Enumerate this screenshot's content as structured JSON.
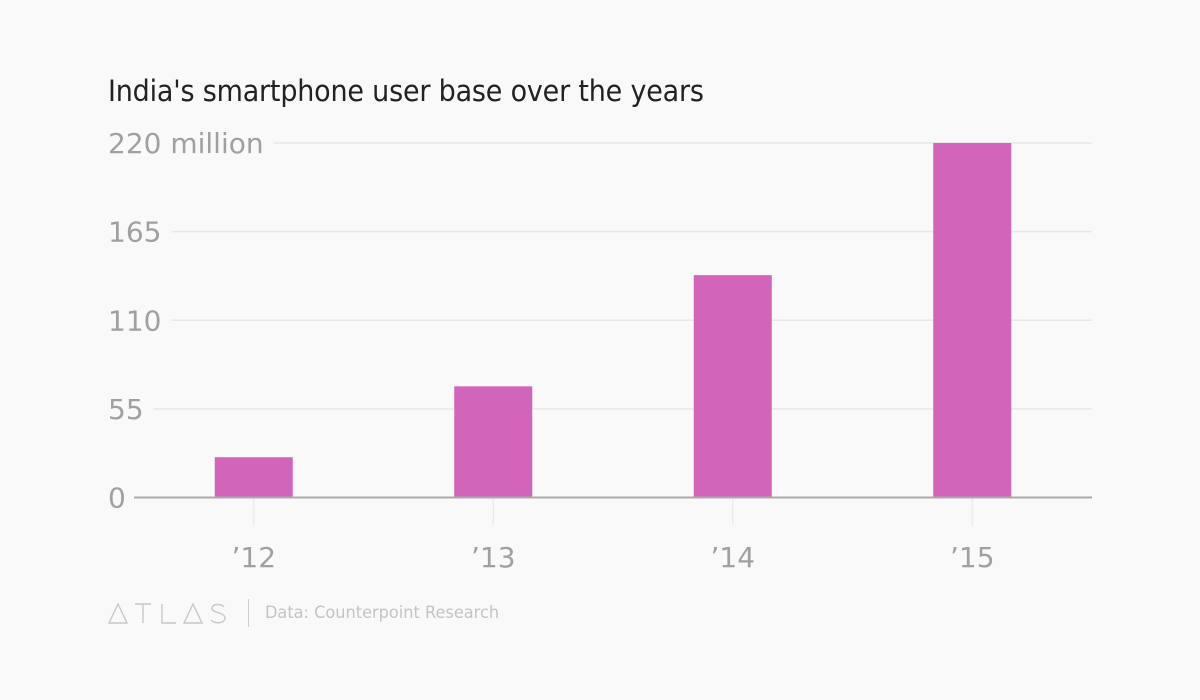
{
  "title": "India's smartphone user base over the years",
  "footer": {
    "logo": "ATLAS",
    "source": "Data: Counterpoint Research"
  },
  "colors": {
    "bar": "#d264b9",
    "background": "#f9f9f9",
    "gridline": "#e8e8e8",
    "axis": "#aaaaaa",
    "label": "#a0a0a0",
    "title": "#222222"
  },
  "chart_data": {
    "type": "bar",
    "title": "India's smartphone user base over the years",
    "xlabel": "",
    "ylabel": "",
    "categories": [
      "’12",
      "’13",
      "’14",
      "’15"
    ],
    "values": [
      25,
      69,
      138,
      220
    ],
    "unit": "million",
    "ylim": [
      0,
      220
    ],
    "yticks": [
      0,
      55,
      110,
      165,
      220
    ],
    "ytick_labels": [
      "0",
      "55",
      "110",
      "165",
      "220 million"
    ],
    "grid": true,
    "legend": "none",
    "source": "Data: Counterpoint Research"
  }
}
